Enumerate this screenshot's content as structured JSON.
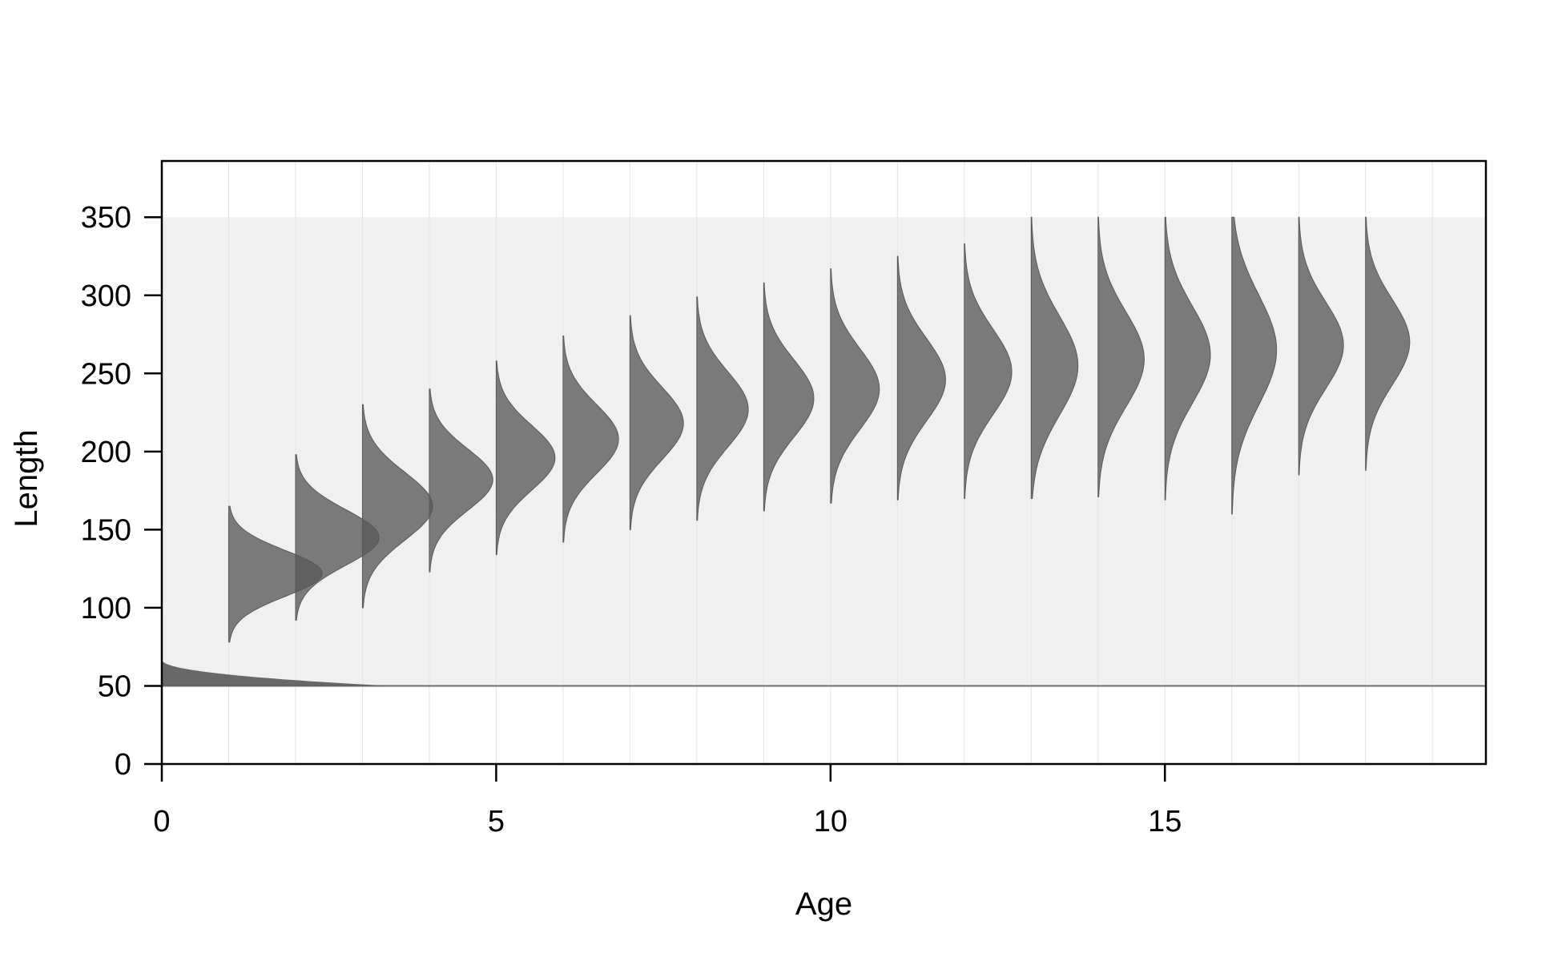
{
  "chart_data": {
    "type": "area",
    "xlabel": "Age",
    "ylabel": "Length",
    "xlim": [
      0,
      19.8
    ],
    "ylim": [
      0,
      350
    ],
    "x_ticks": [
      0,
      5,
      10,
      15
    ],
    "y_ticks": [
      0,
      50,
      100,
      150,
      200,
      250,
      300,
      350
    ],
    "x_tick_labels": [
      "0",
      "5",
      "10",
      "15"
    ],
    "y_tick_labels": [
      "0",
      "50",
      "100",
      "150",
      "200",
      "250",
      "300",
      "350"
    ],
    "grid": "vertical lines at each age",
    "shaded_band": [
      50,
      350
    ],
    "baseline": 50,
    "fill_color": "#595959",
    "band_color": "#f0f0f0",
    "age0_distribution": {
      "age": 0,
      "length_min": 50,
      "length_max": 67,
      "peak_width_years": 3.4
    },
    "distributions": [
      {
        "age": 1,
        "mean": 122,
        "min": 78,
        "max": 165,
        "peak_width_years": 1.4
      },
      {
        "age": 2,
        "mean": 145,
        "min": 92,
        "max": 198,
        "peak_width_years": 1.25
      },
      {
        "age": 3,
        "mean": 165,
        "min": 100,
        "max": 230,
        "peak_width_years": 1.05
      },
      {
        "age": 4,
        "mean": 182,
        "min": 123,
        "max": 240,
        "peak_width_years": 0.95
      },
      {
        "age": 5,
        "mean": 196,
        "min": 134,
        "max": 258,
        "peak_width_years": 0.88
      },
      {
        "age": 6,
        "mean": 208,
        "min": 142,
        "max": 274,
        "peak_width_years": 0.83
      },
      {
        "age": 7,
        "mean": 218,
        "min": 150,
        "max": 287,
        "peak_width_years": 0.8
      },
      {
        "age": 8,
        "mean": 227,
        "min": 156,
        "max": 299,
        "peak_width_years": 0.77
      },
      {
        "age": 9,
        "mean": 234,
        "min": 162,
        "max": 308,
        "peak_width_years": 0.75
      },
      {
        "age": 10,
        "mean": 240,
        "min": 167,
        "max": 317,
        "peak_width_years": 0.73
      },
      {
        "age": 11,
        "mean": 246,
        "min": 169,
        "max": 325,
        "peak_width_years": 0.72
      },
      {
        "age": 12,
        "mean": 251,
        "min": 170,
        "max": 333,
        "peak_width_years": 0.71
      },
      {
        "age": 13,
        "mean": 255,
        "min": 170,
        "max": 350,
        "peak_width_years": 0.7
      },
      {
        "age": 14,
        "mean": 259,
        "min": 171,
        "max": 350,
        "peak_width_years": 0.69
      },
      {
        "age": 15,
        "mean": 262,
        "min": 169,
        "max": 350,
        "peak_width_years": 0.68
      },
      {
        "age": 16,
        "mean": 265,
        "min": 160,
        "max": 350,
        "peak_width_years": 0.67
      },
      {
        "age": 17,
        "mean": 268,
        "min": 185,
        "max": 350,
        "peak_width_years": 0.67
      },
      {
        "age": 18,
        "mean": 270,
        "min": 188,
        "max": 350,
        "peak_width_years": 0.66
      }
    ]
  }
}
